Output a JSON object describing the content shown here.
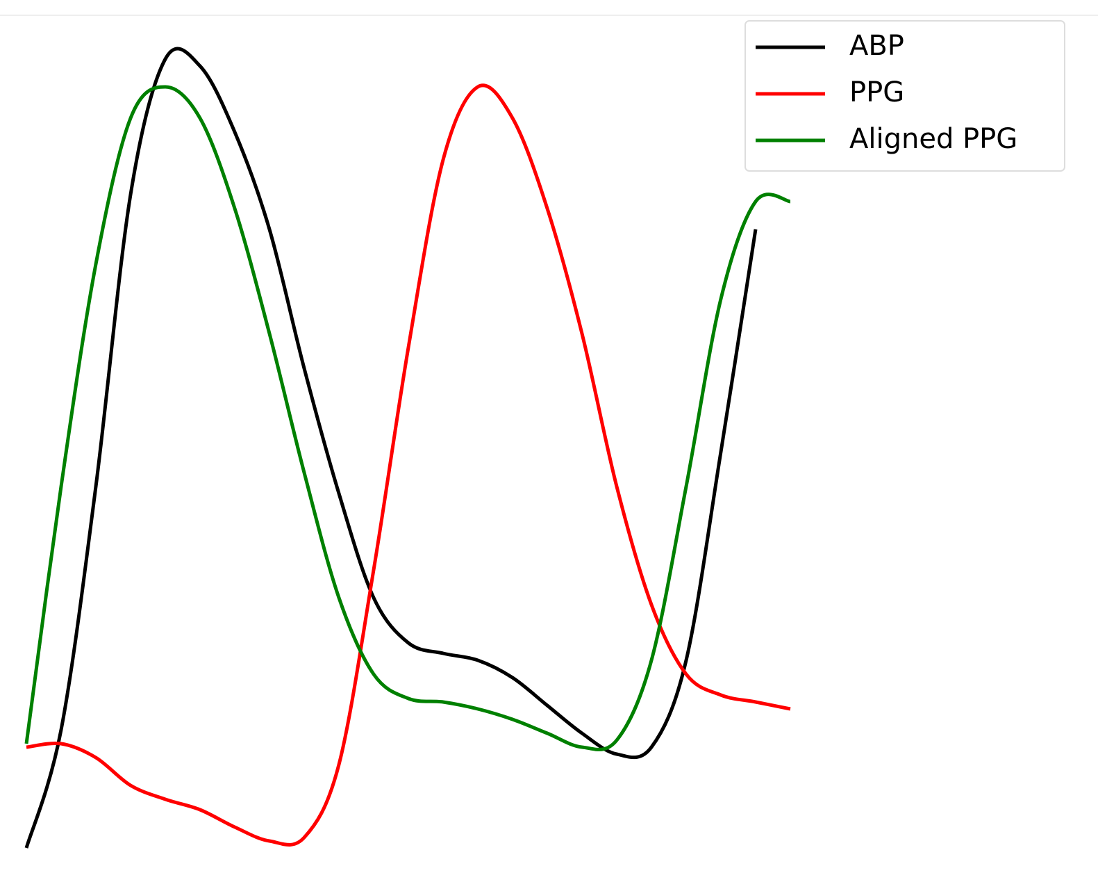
{
  "chart_data": {
    "type": "line",
    "x": [
      0,
      1,
      2,
      3,
      4,
      5,
      6,
      7,
      8,
      9,
      10,
      11,
      12,
      13,
      14,
      15,
      16,
      17,
      18,
      19,
      20,
      21,
      22
    ],
    "series": [
      {
        "name": "ABP",
        "color": "#000000",
        "values": [
          1,
          18,
          53,
          95,
          114.5,
          113.5,
          104,
          90,
          70,
          52,
          37,
          30.5,
          29,
          28,
          25.5,
          21.5,
          17.5,
          14.5,
          15.5,
          28,
          58,
          90,
          null
        ]
      },
      {
        "name": "PPG",
        "color": "#ff0000",
        "values": [
          15.5,
          16,
          14,
          10,
          8,
          6.5,
          4,
          2,
          2.5,
          13,
          41,
          73,
          100,
          110.5,
          106,
          93,
          75,
          53,
          36,
          26,
          23,
          22,
          21
        ]
      },
      {
        "name": "Aligned PPG",
        "color": "#008000",
        "values": [
          16,
          53,
          85,
          106,
          110.5,
          106,
          93,
          75,
          55,
          37,
          26,
          22.5,
          22,
          21,
          19.5,
          17.5,
          15.5,
          16.5,
          28,
          53,
          80,
          94,
          94
        ]
      }
    ],
    "xlim": [
      0,
      22
    ],
    "ylim": [
      0,
      120
    ],
    "legend": "upper right"
  }
}
